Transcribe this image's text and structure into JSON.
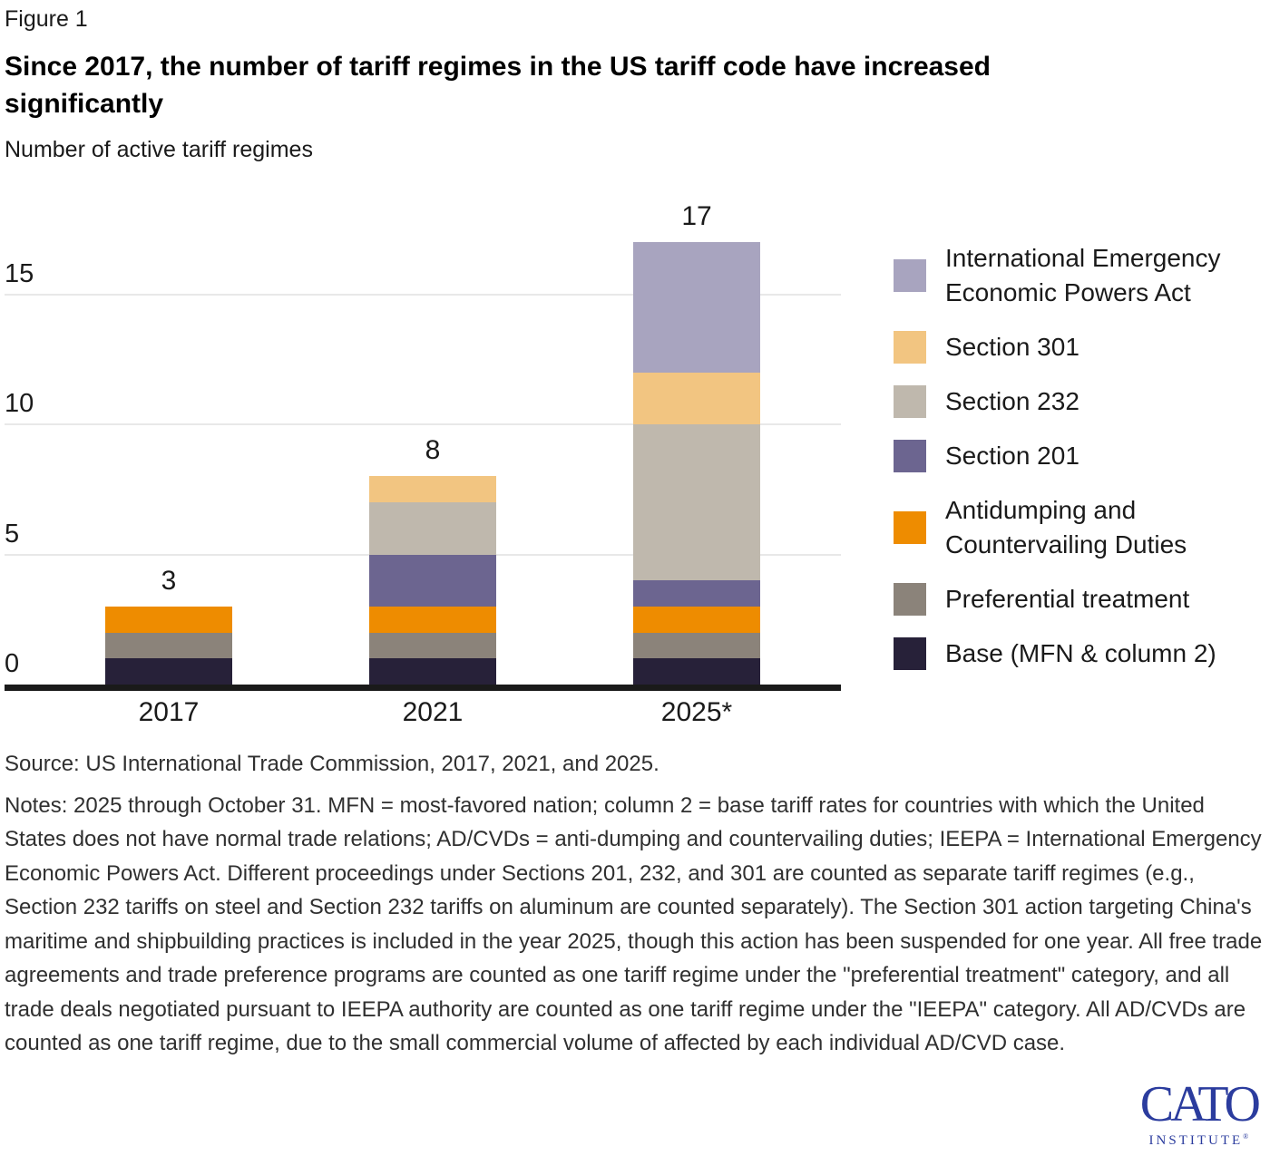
{
  "figure_label": "Figure 1",
  "title": "Since 2017, the number of tariff regimes in the US tariff code have increased significantly",
  "subtitle": "Number of active tariff regimes",
  "chart_data": {
    "type": "bar",
    "stacked": true,
    "title": "Since 2017, the number of tariff regimes in the US tariff code have increased significantly",
    "ylabel": "Number of active tariff regimes",
    "categories": [
      "2017",
      "2021",
      "2025*"
    ],
    "series": [
      {
        "name": "Base (MFN & column 2)",
        "color": "#272139",
        "values": [
          1,
          1,
          1
        ]
      },
      {
        "name": "Preferential treatment",
        "color": "#8b837a",
        "values": [
          1,
          1,
          1
        ]
      },
      {
        "name": "Antidumping and Countervailing Duties",
        "color": "#ee8c00",
        "values": [
          1,
          1,
          1
        ]
      },
      {
        "name": "Section 201",
        "color": "#6c6590",
        "values": [
          0,
          2,
          1
        ]
      },
      {
        "name": "Section 232",
        "color": "#bfb8ad",
        "values": [
          0,
          2,
          6
        ]
      },
      {
        "name": "Section 301",
        "color": "#f2c581",
        "values": [
          0,
          1,
          2
        ]
      },
      {
        "name": "International Emergency Economic Powers Act",
        "color": "#a8a4bf",
        "values": [
          0,
          0,
          5
        ]
      }
    ],
    "totals": [
      3,
      8,
      17
    ],
    "y_ticks": [
      0,
      5,
      10,
      15
    ],
    "ylim": [
      0,
      17
    ],
    "grid": true,
    "legend_position": "right"
  },
  "legend": {
    "items": [
      {
        "label": "International Emergency Economic Powers Act",
        "color": "#a8a4bf"
      },
      {
        "label": "Section 301",
        "color": "#f2c581"
      },
      {
        "label": "Section 232",
        "color": "#bfb8ad"
      },
      {
        "label": "Section 201",
        "color": "#6c6590"
      },
      {
        "label": "Antidumping and Countervailing Duties",
        "color": "#ee8c00"
      },
      {
        "label": "Preferential treatment",
        "color": "#8b837a"
      },
      {
        "label": "Base (MFN & column 2)",
        "color": "#272139"
      }
    ]
  },
  "source": "Source: US International Trade Commission, 2017, 2021, and 2025.",
  "notes": "Notes: 2025 through October 31. MFN = most-favored nation; column 2 = base tariff rates for countries with which the United States does not have normal trade relations; AD/CVDs = anti-dumping and countervailing duties; IEEPA = International Emergency Economic Powers Act. Different proceedings under Sections 201, 232, and 301 are counted as separate tariff regimes (e.g., Section 232 tariffs on steel and Section 232 tariffs on aluminum are counted separately). The Section 301 action targeting China's maritime and shipbuilding practices is included in the year 2025, though this action has been suspended for one year. All free trade agreements and trade preference programs are counted as one tariff regime under the \"preferential treatment\" category, and all trade deals negotiated pursuant to IEEPA authority are counted as one tariff regime under the \"IEEPA\" category. All AD/CVDs are counted as one tariff regime, due to the small commercial volume of affected by each individual AD/CVD case.",
  "logo": {
    "brand": "CATO",
    "sub": "INSTITUTE",
    "reg": "®"
  }
}
